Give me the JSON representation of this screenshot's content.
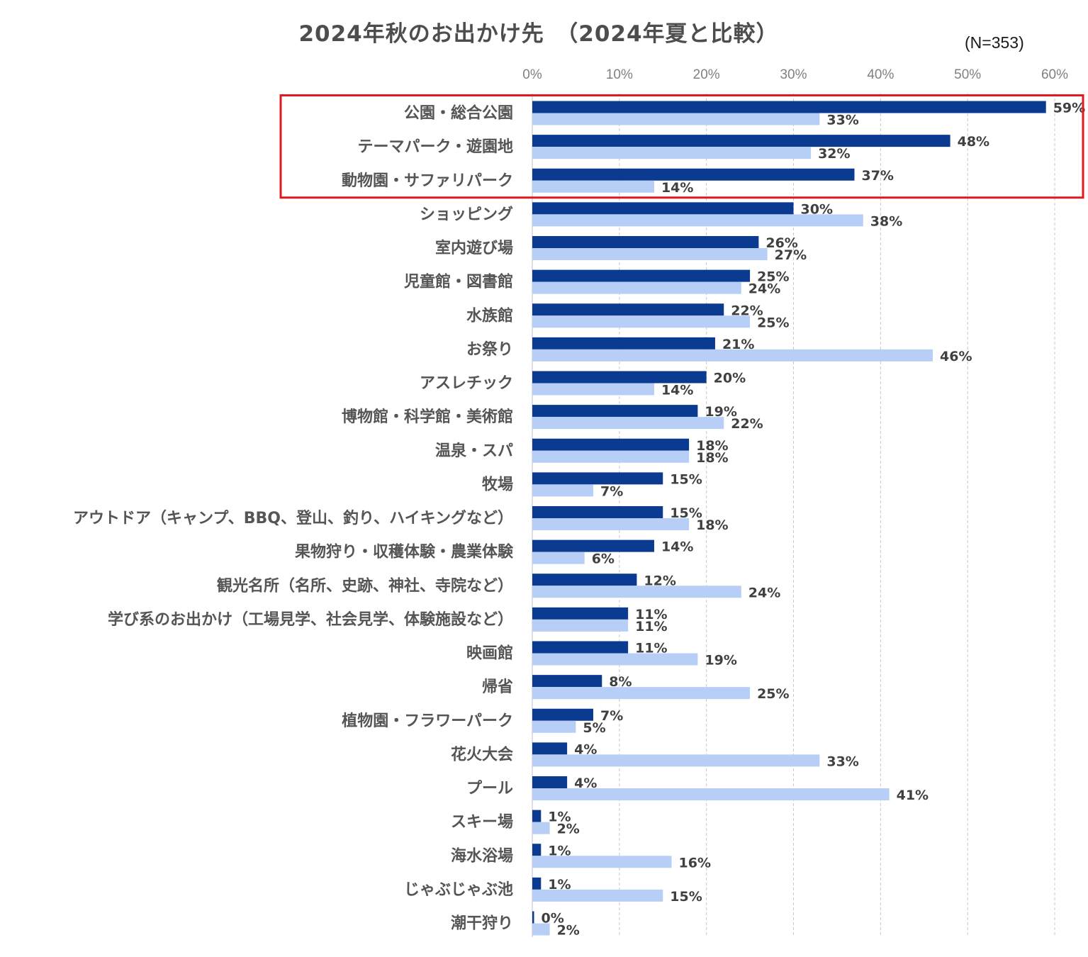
{
  "chart_data": {
    "type": "bar",
    "orientation": "horizontal",
    "title": "2024年秋のお出かけ先　（2024年夏と比較）",
    "sample_size": "(N=353)",
    "xlim": [
      0,
      60
    ],
    "x_ticks": [
      "0%",
      "10%",
      "20%",
      "30%",
      "40%",
      "50%",
      "60%"
    ],
    "grid": true,
    "unit": "%",
    "categories": [
      "公園・総合公園",
      "テーマパーク・遊園地",
      "動物園・サファリパーク",
      "ショッピング",
      "室内遊び場",
      "児童館・図書館",
      "水族館",
      "お祭り",
      "アスレチック",
      "博物館・科学館・美術館",
      "温泉・スパ",
      "牧場",
      "アウトドア（キャンプ、BBQ、登山、釣り、ハイキングなど）",
      "果物狩り・収穫体験・農業体験",
      "観光名所（名所、史跡、神社、寺院など）",
      "学び系のお出かけ（工場見学、社会見学、体験施設など）",
      "映画館",
      "帰省",
      "植物園・フラワーパーク",
      "花火大会",
      "プール",
      "スキー場",
      "海水浴場",
      "じゃぶじゃぶ池",
      "潮干狩り"
    ],
    "series": [
      {
        "color": "#0a3b91",
        "values": [
          59,
          48,
          37,
          30,
          26,
          25,
          22,
          21,
          20,
          19,
          18,
          15,
          15,
          14,
          12,
          11,
          11,
          8,
          7,
          4,
          4,
          1,
          1,
          1,
          0
        ],
        "labels": [
          "59%",
          "48%",
          "37%",
          "30%",
          "26%",
          "25%",
          "22%",
          "21%",
          "20%",
          "19%",
          "18%",
          "15%",
          "15%",
          "14%",
          "12%",
          "11%",
          "11%",
          "8%",
          "7%",
          "4%",
          "4%",
          "1%",
          "1%",
          "1%",
          "0%"
        ]
      },
      {
        "color": "#b7cff6",
        "values": [
          33,
          32,
          14,
          38,
          27,
          24,
          25,
          46,
          14,
          22,
          18,
          7,
          18,
          6,
          24,
          11,
          19,
          25,
          5,
          33,
          41,
          2,
          16,
          15,
          2
        ],
        "labels": [
          "33%",
          "32%",
          "14%",
          "38%",
          "27%",
          "24%",
          "25%",
          "46%",
          "14%",
          "22%",
          "18%",
          "7%",
          "18%",
          "6%",
          "24%",
          "11%",
          "19%",
          "25%",
          "5%",
          "33%",
          "41%",
          "2%",
          "16%",
          "15%",
          "2%"
        ]
      }
    ],
    "highlight": {
      "color": "#e0191e",
      "categories": [
        0,
        1,
        2
      ]
    }
  }
}
